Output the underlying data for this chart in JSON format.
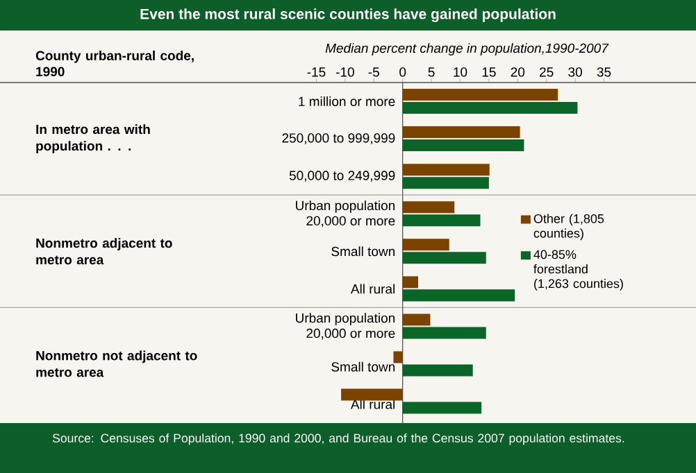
{
  "chart_data": {
    "type": "bar",
    "orientation": "horizontal",
    "title": "Even the most rural scenic counties have gained population",
    "xlabel": "Median percent change in population,1990-2007",
    "ylabel": "County urban-rural code, 1990",
    "categories": [
      "1 million or more",
      "250,000 to 999,999",
      "50,000 to 249,999",
      "Urban population 20,000 or more",
      "Small town",
      "All rural",
      "Urban population 20,000 or more",
      "Small town",
      "All rural"
    ],
    "series": [
      {
        "name": "Other (1,805 counties)",
        "color": "#7b4300",
        "values": [
          27,
          20.4,
          15.1,
          9,
          8.1,
          2.7,
          4.8,
          -1.6,
          -10.7
        ]
      },
      {
        "name": "40-85% forestland (1,263 counties)",
        "color": "#0b6428",
        "values": [
          30.4,
          21.1,
          15,
          13.5,
          14.5,
          19.5,
          14.5,
          12.2,
          13.7
        ]
      }
    ],
    "xlim": [
      -70,
      51
    ],
    "xticks": [
      -15,
      -10,
      -5,
      0,
      5,
      10,
      15,
      20,
      25,
      30,
      35
    ],
    "legend": "right",
    "annotations": [
      "In metro area with population . . .",
      "Nonmetro adjacent to metro area",
      "Nonmetro not adjacent to metro area",
      "Source: Censuses of Population, 1990 and 2000, and Bureau of the Census 2007 population estimates."
    ]
  }
}
